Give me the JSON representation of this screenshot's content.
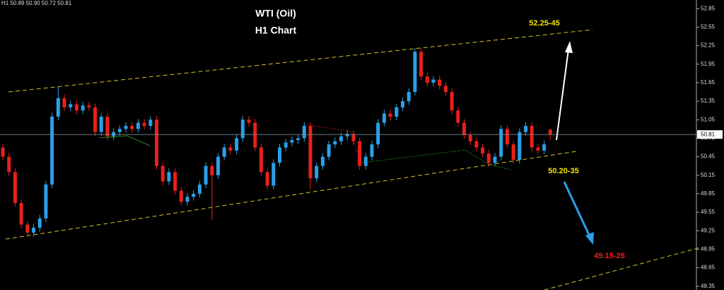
{
  "chart_data": {
    "type": "candlestick",
    "title": "WTI (Oil)",
    "subtitle": "H1 Chart",
    "header": "H1  50.89 50.90 50.72 50.81",
    "annotations": [
      "52.25-45",
      "50.20-35",
      "49.15-25"
    ],
    "ylim": [
      48.29,
      52.99
    ],
    "yticks": [
      52.85,
      52.55,
      52.25,
      51.95,
      51.65,
      51.35,
      51.05,
      50.75,
      50.45,
      50.15,
      49.85,
      49.55,
      49.25,
      48.95,
      48.65,
      48.35
    ],
    "last_price": 50.81,
    "up_color": "#2aa0e8",
    "down_color": "#e8201a",
    "open": [
      50.6,
      50.45,
      50.2,
      49.7,
      49.35,
      49.22,
      49.3,
      49.45,
      50.0,
      51.1,
      51.4,
      51.25,
      51.3,
      51.2,
      51.28,
      51.25,
      50.85,
      51.1,
      50.78,
      50.85,
      50.9,
      50.95,
      50.9,
      51.0,
      50.95,
      51.05,
      50.3,
      50.05,
      50.2,
      49.9,
      49.72,
      49.8,
      49.85,
      50.0,
      50.3,
      50.15,
      50.45,
      50.6,
      50.55,
      50.75,
      51.05,
      51.0,
      50.6,
      50.2,
      49.98,
      50.35,
      50.6,
      50.68,
      50.72,
      50.75,
      50.95,
      50.1,
      50.3,
      50.45,
      50.65,
      50.7,
      50.78,
      50.82,
      50.7,
      50.3,
      50.45,
      50.65,
      51.0,
      51.15,
      51.1,
      51.25,
      51.35,
      51.5,
      52.15,
      51.75,
      51.65,
      51.7,
      51.6,
      51.5,
      51.2,
      51.0,
      50.8,
      50.7,
      50.6,
      50.5,
      50.35,
      50.45,
      50.9,
      50.65,
      50.4,
      50.85,
      50.95,
      50.6,
      50.55,
      50.89
    ],
    "high": [
      50.66,
      50.51,
      50.26,
      49.76,
      49.41,
      49.36,
      49.51,
      50.06,
      51.16,
      51.58,
      51.46,
      51.36,
      51.36,
      51.34,
      51.34,
      51.31,
      51.16,
      51.16,
      50.91,
      50.96,
      51.01,
      51.01,
      51.06,
      51.06,
      51.11,
      51.11,
      50.36,
      50.26,
      50.26,
      49.96,
      49.86,
      49.91,
      50.06,
      50.36,
      50.36,
      50.51,
      50.66,
      50.66,
      50.81,
      51.11,
      51.11,
      51.06,
      50.66,
      50.26,
      50.41,
      50.66,
      50.74,
      50.78,
      50.81,
      51.01,
      51.01,
      50.36,
      50.51,
      50.71,
      50.76,
      50.84,
      50.88,
      50.88,
      50.76,
      50.51,
      50.71,
      51.06,
      51.21,
      51.21,
      51.31,
      51.41,
      51.56,
      52.21,
      52.21,
      51.81,
      51.76,
      51.76,
      51.66,
      51.56,
      51.26,
      51.06,
      50.86,
      50.76,
      50.66,
      50.56,
      50.51,
      50.96,
      50.96,
      50.71,
      50.91,
      51.01,
      51.01,
      50.66,
      50.71,
      50.9
    ],
    "low": [
      50.39,
      50.14,
      49.64,
      49.29,
      49.16,
      49.16,
      49.24,
      49.39,
      49.94,
      51.04,
      51.19,
      51.19,
      51.14,
      51.14,
      51.19,
      50.79,
      50.79,
      50.72,
      50.72,
      50.79,
      50.84,
      50.84,
      50.84,
      50.89,
      50.89,
      50.24,
      49.99,
      49.99,
      49.84,
      49.66,
      49.66,
      49.74,
      49.79,
      49.94,
      49.42,
      50.09,
      50.39,
      50.49,
      50.49,
      50.69,
      50.94,
      50.54,
      50.14,
      49.92,
      49.92,
      50.29,
      50.54,
      50.62,
      50.66,
      50.69,
      49.92,
      50.04,
      50.24,
      50.39,
      50.59,
      50.64,
      50.72,
      50.64,
      50.24,
      50.24,
      50.39,
      50.59,
      50.94,
      51.04,
      51.04,
      51.19,
      51.29,
      51.44,
      51.69,
      51.59,
      51.59,
      51.54,
      51.44,
      51.14,
      50.94,
      50.74,
      50.64,
      50.54,
      50.44,
      50.29,
      50.29,
      50.39,
      50.59,
      50.34,
      50.34,
      50.79,
      50.54,
      50.49,
      50.49,
      50.72
    ],
    "close": [
      50.45,
      50.2,
      49.7,
      49.35,
      49.22,
      49.3,
      49.45,
      50.0,
      51.1,
      51.4,
      51.25,
      51.3,
      51.2,
      51.28,
      51.25,
      50.85,
      51.1,
      50.78,
      50.85,
      50.9,
      50.95,
      50.9,
      51.0,
      50.95,
      51.05,
      50.3,
      50.05,
      50.2,
      49.9,
      49.72,
      49.8,
      49.85,
      50.0,
      50.3,
      50.15,
      50.45,
      50.6,
      50.55,
      50.75,
      51.05,
      51.0,
      50.6,
      50.2,
      49.98,
      50.35,
      50.6,
      50.68,
      50.72,
      50.75,
      50.95,
      50.1,
      50.3,
      50.45,
      50.65,
      50.7,
      50.78,
      50.82,
      50.7,
      50.3,
      50.45,
      50.65,
      51.0,
      51.15,
      51.1,
      51.25,
      51.35,
      51.5,
      52.15,
      51.75,
      51.65,
      51.7,
      51.6,
      51.5,
      51.2,
      51.0,
      50.8,
      50.7,
      50.6,
      50.5,
      50.35,
      50.45,
      50.9,
      50.65,
      50.4,
      50.85,
      50.95,
      50.6,
      50.55,
      50.65,
      50.81
    ]
  }
}
